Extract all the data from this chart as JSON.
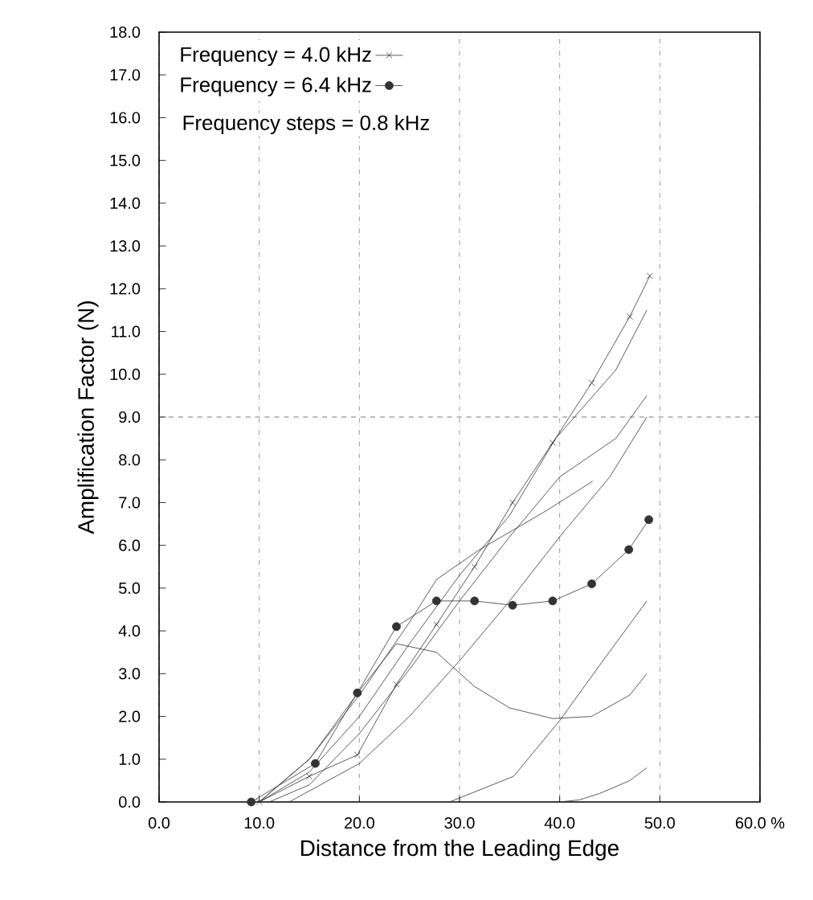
{
  "chart_data": {
    "type": "line",
    "xlabel": "Distance from the Leading Edge",
    "ylabel": "Amplification Factor (N)",
    "xlim": [
      0,
      60
    ],
    "ylim": [
      0,
      18
    ],
    "xticks": [
      {
        "value": 0,
        "label": "0.0"
      },
      {
        "value": 10,
        "label": "10.0"
      },
      {
        "value": 20,
        "label": "20.0"
      },
      {
        "value": 30,
        "label": "30.0"
      },
      {
        "value": 40,
        "label": "40.0"
      },
      {
        "value": 50,
        "label": "50.0"
      },
      {
        "value": 60,
        "label": "60.0 %"
      }
    ],
    "yticks": [
      {
        "value": 0,
        "label": "0.0"
      },
      {
        "value": 1,
        "label": "1.0"
      },
      {
        "value": 2,
        "label": "2.0"
      },
      {
        "value": 3,
        "label": "3.0"
      },
      {
        "value": 4,
        "label": "4.0"
      },
      {
        "value": 5,
        "label": "5.0"
      },
      {
        "value": 6,
        "label": "6.0"
      },
      {
        "value": 7,
        "label": "7.0"
      },
      {
        "value": 8,
        "label": "8.0"
      },
      {
        "value": 9,
        "label": "9.0"
      },
      {
        "value": 10,
        "label": "10.0"
      },
      {
        "value": 11,
        "label": "11.0"
      },
      {
        "value": 12,
        "label": "12.0"
      },
      {
        "value": 13,
        "label": "13.0"
      },
      {
        "value": 14,
        "label": "14.0"
      },
      {
        "value": 15,
        "label": "15.0"
      },
      {
        "value": 16,
        "label": "16.0"
      },
      {
        "value": 17,
        "label": "17.0"
      },
      {
        "value": 18,
        "label": "18.0"
      }
    ],
    "grid": "x",
    "legend": "top left",
    "annotations": [
      "Frequency steps = 0.8 kHz"
    ],
    "ref_lines": [
      {
        "axis": "y",
        "value": 9,
        "line_style": "dashed",
        "color": "#555555"
      }
    ],
    "series": [
      {
        "name": "Frequency = 4.0 kHz",
        "color": "#333333",
        "marker": "cross",
        "x": [
          10,
          15,
          19.8,
          23.7,
          27.7,
          31.5,
          35.3,
          39.3,
          43.2,
          47.0,
          49.0
        ],
        "values": [
          0,
          0.6,
          1.1,
          2.75,
          4.15,
          5.5,
          7.0,
          8.4,
          9.8,
          11.35,
          12.3
        ]
      },
      {
        "name": "Frequency = 6.4 kHz",
        "color": "#333333",
        "marker": "circle",
        "x": [
          9.2,
          15.6,
          19.8,
          23.7,
          27.7,
          31.5,
          35.3,
          39.3,
          43.2,
          46.9,
          48.9
        ],
        "values": [
          0,
          0.9,
          2.55,
          4.1,
          4.7,
          4.7,
          4.6,
          4.7,
          5.1,
          5.9,
          6.6
        ]
      },
      {
        "color": "#333333",
        "marker": "none",
        "x": [
          10,
          15,
          20,
          25,
          30,
          35,
          39.6,
          45.6,
          48.7
        ],
        "values": [
          0,
          0.7,
          2.0,
          3.7,
          5.3,
          6.7,
          8.5,
          10.1,
          11.5
        ]
      },
      {
        "color": "#333333",
        "marker": "none",
        "x": [
          10,
          15,
          20,
          25,
          27.7,
          32,
          38.6,
          43.3
        ],
        "values": [
          0,
          1.0,
          2.5,
          4.2,
          5.2,
          5.9,
          6.8,
          7.5
        ]
      },
      {
        "color": "#333333",
        "marker": "none",
        "x": [
          11,
          15,
          20,
          25,
          30,
          35,
          40,
          45.6,
          48.7
        ],
        "values": [
          0,
          0.4,
          1.6,
          3.1,
          4.7,
          6.2,
          7.6,
          8.5,
          9.5
        ]
      },
      {
        "color": "#333333",
        "marker": "none",
        "x": [
          13,
          20,
          25,
          30,
          35,
          40,
          45,
          48.7
        ],
        "values": [
          0,
          0.9,
          2.0,
          3.3,
          4.7,
          6.2,
          7.6,
          9.0
        ]
      },
      {
        "color": "#333333",
        "marker": "none",
        "x": [
          10,
          15,
          20,
          23.7,
          27.7,
          31.5,
          35,
          39.3,
          43.2,
          47,
          48.7
        ],
        "values": [
          0,
          1.0,
          2.6,
          3.7,
          3.5,
          2.7,
          2.2,
          1.95,
          2.0,
          2.5,
          3.0
        ]
      },
      {
        "color": "#333333",
        "marker": "none",
        "x": [
          29,
          35.4,
          40,
          44,
          48.7
        ],
        "values": [
          0,
          0.6,
          1.9,
          3.2,
          4.7
        ]
      },
      {
        "color": "#333333",
        "marker": "none",
        "x": [
          40,
          42,
          44,
          47,
          48.7
        ],
        "values": [
          0,
          0.05,
          0.2,
          0.5,
          0.8
        ]
      }
    ]
  }
}
